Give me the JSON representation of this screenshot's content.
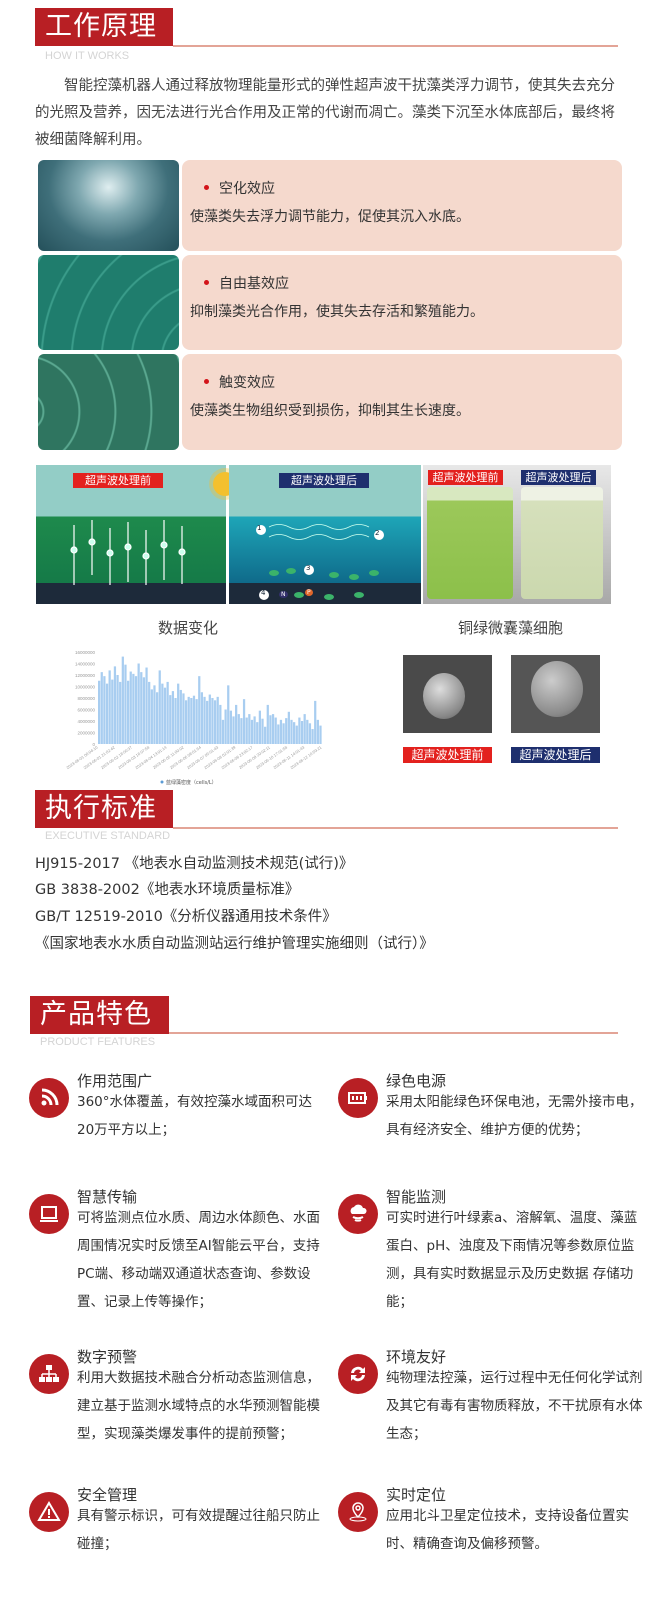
{
  "sections": {
    "how": {
      "title": "工作原理",
      "subtitle": "HOW IT WORKS"
    },
    "standard": {
      "title": "执行标准",
      "subtitle": "EXECUTIVE STANDARD"
    },
    "features": {
      "title": "产品特色",
      "subtitle": "PRODUCT FEATURES"
    }
  },
  "intro": "智能控藻机器人通过释放物理能量形式的弹性超声波干扰藻类浮力调节，使其失去充分的光照及营养，因无法进行光合作用及正常的代谢而凋亡。藻类下沉至水体底部后，最终将被细菌降解利用。",
  "effects": [
    {
      "title": "空化效应",
      "desc": "使藻类失去浮力调节能力，促使其沉入水底。"
    },
    {
      "title": "自由基效应",
      "desc": "抑制藻类光合作用，使其失去存活和繁殖能力。"
    },
    {
      "title": "触变效应",
      "desc": "使藻类生物组织受到损伤，抑制其生长速度。"
    }
  ],
  "diagram": {
    "before": "超声波处理前",
    "after": "超声波处理后",
    "markers": [
      "1",
      "2",
      "3",
      "4"
    ],
    "nutrients": [
      "N",
      "P"
    ]
  },
  "photo": {
    "before": "超声波处理前",
    "after": "超声波处理后"
  },
  "captions": {
    "data_change": "数据变化",
    "cells": "铜绿微囊藻细胞"
  },
  "sem": {
    "before": "超声波处理前",
    "after": "超声波处理后"
  },
  "colors": {
    "brand_red": "#b81f24",
    "tag_red": "#e3211e",
    "tag_navy": "#1e2f6e",
    "card_bg": "#f5d9cd",
    "bar": "#a8cdf0"
  },
  "chart_data": {
    "type": "bar",
    "title": "",
    "legend": [
      "蓝绿藻密度（cells/L）"
    ],
    "legend_position": "bottom",
    "ylim": [
      0,
      16000000
    ],
    "yticks": [
      "0",
      "2000000",
      "4000000",
      "6000000",
      "8000000",
      "10000000",
      "12000000",
      "14000000",
      "16000000"
    ],
    "xticks": [
      "2023-06-01 00:04:10",
      "2023-06-01 21:02:42",
      "2023-06-02 18:00:37",
      "2023-06-03 16:07:58",
      "2023-06-04 13:01:14",
      "2023-06-05 11:00:02",
      "2023-06-06 08:01:54",
      "2023-06-07 05:01:43",
      "2023-06-08 02:01:39",
      "2023-06-08 23:02:17",
      "2023-06-09 20:02:11",
      "2023-06-10 17:01:58",
      "2023-06-11 14:01:43",
      "2023-06-12 10:59:21"
    ],
    "series": [
      {
        "name": "蓝绿藻密度（cells/L）",
        "values": [
          11000000,
          12500000,
          11800000,
          10500000,
          12800000,
          11200000,
          13500000,
          12000000,
          10800000,
          15200000,
          13800000,
          11000000,
          12600000,
          12200000,
          11800000,
          14000000,
          12500000,
          11600000,
          13300000,
          10800000,
          9500000,
          10200000,
          9000000,
          12800000,
          10500000,
          9800000,
          10800000,
          8500000,
          9200000,
          8000000,
          10500000,
          9400000,
          8800000,
          7600000,
          8200000,
          8000000,
          8400000,
          7800000,
          11800000,
          9000000,
          8200000,
          7500000,
          8600000,
          8000000,
          7600000,
          8200000,
          6800000,
          4200000,
          6000000,
          10200000,
          5800000,
          4800000,
          6800000,
          5200000,
          4500000,
          7800000,
          4600000,
          5200000,
          4200000,
          4800000,
          3800000,
          5800000,
          4400000,
          3000000,
          6800000,
          5000000,
          5200000,
          4600000,
          3400000,
          4200000,
          3600000,
          4500000,
          5600000,
          4200000,
          3800000,
          3200000,
          4600000,
          4000000,
          5200000,
          4200000,
          3600000,
          2600000,
          7500000,
          4200000,
          3200000
        ]
      }
    ]
  },
  "standards": [
    "HJ915-2017 《地表水自动监测技术规范(试行)》",
    "GB 3838-2002《地表水环境质量标准》",
    "GB/T 12519-2010《分析仪器通用技术条件》",
    "《国家地表水水质自动监测站运行维护管理实施细则（试行）》"
  ],
  "features": [
    {
      "icon": "signal-icon",
      "title": "作用范围广",
      "desc": "360°水体覆盖，有效控藻水域面积可达20万平方以上；"
    },
    {
      "icon": "battery-icon",
      "title": "绿色电源",
      "desc": "采用太阳能绿色环保电池，无需外接市电，具有经济安全、维护方便的优势；"
    },
    {
      "icon": "laptop-icon",
      "title": "智慧传输",
      "desc": "可将监测点位水质、周边水体颜色、水面周围情况实时反馈至AI智能云平台，支持PC端、移动端双通道状态查询、参数设置、记录上传等操作；"
    },
    {
      "icon": "cloud-monitor-icon",
      "title": "智能监测",
      "desc": "可实时进行叶绿素a、溶解氧、温度、藻蓝蛋白、pH、浊度及下雨情况等参数原位监测，具有实时数据显示及历史数据 存储功能；"
    },
    {
      "icon": "network-icon",
      "title": "数字预警",
      "desc": "利用大数据技术融合分析动态监测信息，建立基于监测水域特点的水华预测智能模型，实现藻类爆发事件的提前预警；"
    },
    {
      "icon": "refresh-icon",
      "title": "环境友好",
      "desc": "纯物理法控藻，运行过程中无任何化学试剂及其它有毒有害物质释放，不干扰原有水体生态；"
    },
    {
      "icon": "warning-icon",
      "title": "安全管理",
      "desc": "具有警示标识，可有效提醒过往船只防止碰撞；"
    },
    {
      "icon": "location-icon",
      "title": "实时定位",
      "desc": "应用北斗卫星定位技术，支持设备位置实时、精确查询及偏移预警。"
    }
  ]
}
